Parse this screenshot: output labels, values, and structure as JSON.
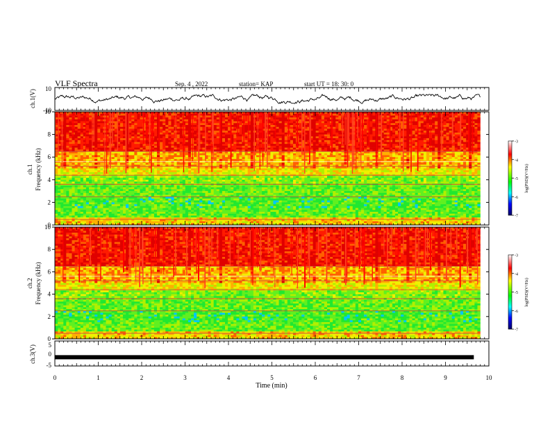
{
  "header": {
    "title": "VLF Spectra",
    "date": "Sep. 4 , 2022",
    "station": "station= KAP",
    "start_ut": "start UT = 18: 30: 0"
  },
  "colors": {
    "spectrogram_low": "#000066",
    "spectrogram_mid": "#00ff00",
    "spectrogram_high": "#ff0000",
    "trace": "#000000"
  },
  "chart_data": [
    {
      "type": "line",
      "panel": "ch1-waveform",
      "ylabel": "ch.1(V)",
      "yticks": [
        "10",
        "-10"
      ],
      "ylim": [
        -10,
        10
      ],
      "xlim": [
        0,
        10
      ],
      "trace_extent_min": 9.8,
      "description_values": {
        "mean": 4,
        "range": [
          0,
          8
        ]
      }
    },
    {
      "type": "heatmap",
      "panel": "ch1-spectrogram",
      "ylabel_channel": "ch.1",
      "ylabel": "Frequency (kHz)",
      "yticks": [
        "0",
        "2",
        "4",
        "6",
        "8",
        "10"
      ],
      "ylim": [
        0,
        10
      ],
      "xlim": [
        0,
        9.8
      ],
      "colorbar": {
        "label": "log(PSD)(V²/Hz)",
        "ticks": [
          "-3",
          "-4",
          "-5",
          "-6",
          "-7"
        ],
        "range": [
          -7,
          -3
        ]
      }
    },
    {
      "type": "heatmap",
      "panel": "ch2-spectrogram",
      "ylabel_channel": "ch.2",
      "ylabel": "Frequency (kHz)",
      "yticks": [
        "0",
        "2",
        "4",
        "6",
        "8",
        "10"
      ],
      "ylim": [
        0,
        10
      ],
      "xlim": [
        0,
        9.8
      ],
      "colorbar": {
        "label": "log(PSD)(V²/Hz)",
        "ticks": [
          "-3",
          "-4",
          "-5",
          "-6",
          "-7"
        ],
        "range": [
          -7,
          -3
        ]
      }
    },
    {
      "type": "line",
      "panel": "ch3-waveform",
      "ylabel": "ch.3(V)",
      "yticks": [
        "5",
        "0",
        "-5"
      ],
      "ylim": [
        -5,
        5
      ],
      "xlim": [
        0,
        10
      ],
      "value_level": -1.5
    }
  ],
  "xaxis": {
    "label": "Time (min)",
    "ticks": [
      "0",
      "1",
      "2",
      "3",
      "4",
      "5",
      "6",
      "7",
      "8",
      "9",
      "10"
    ]
  }
}
